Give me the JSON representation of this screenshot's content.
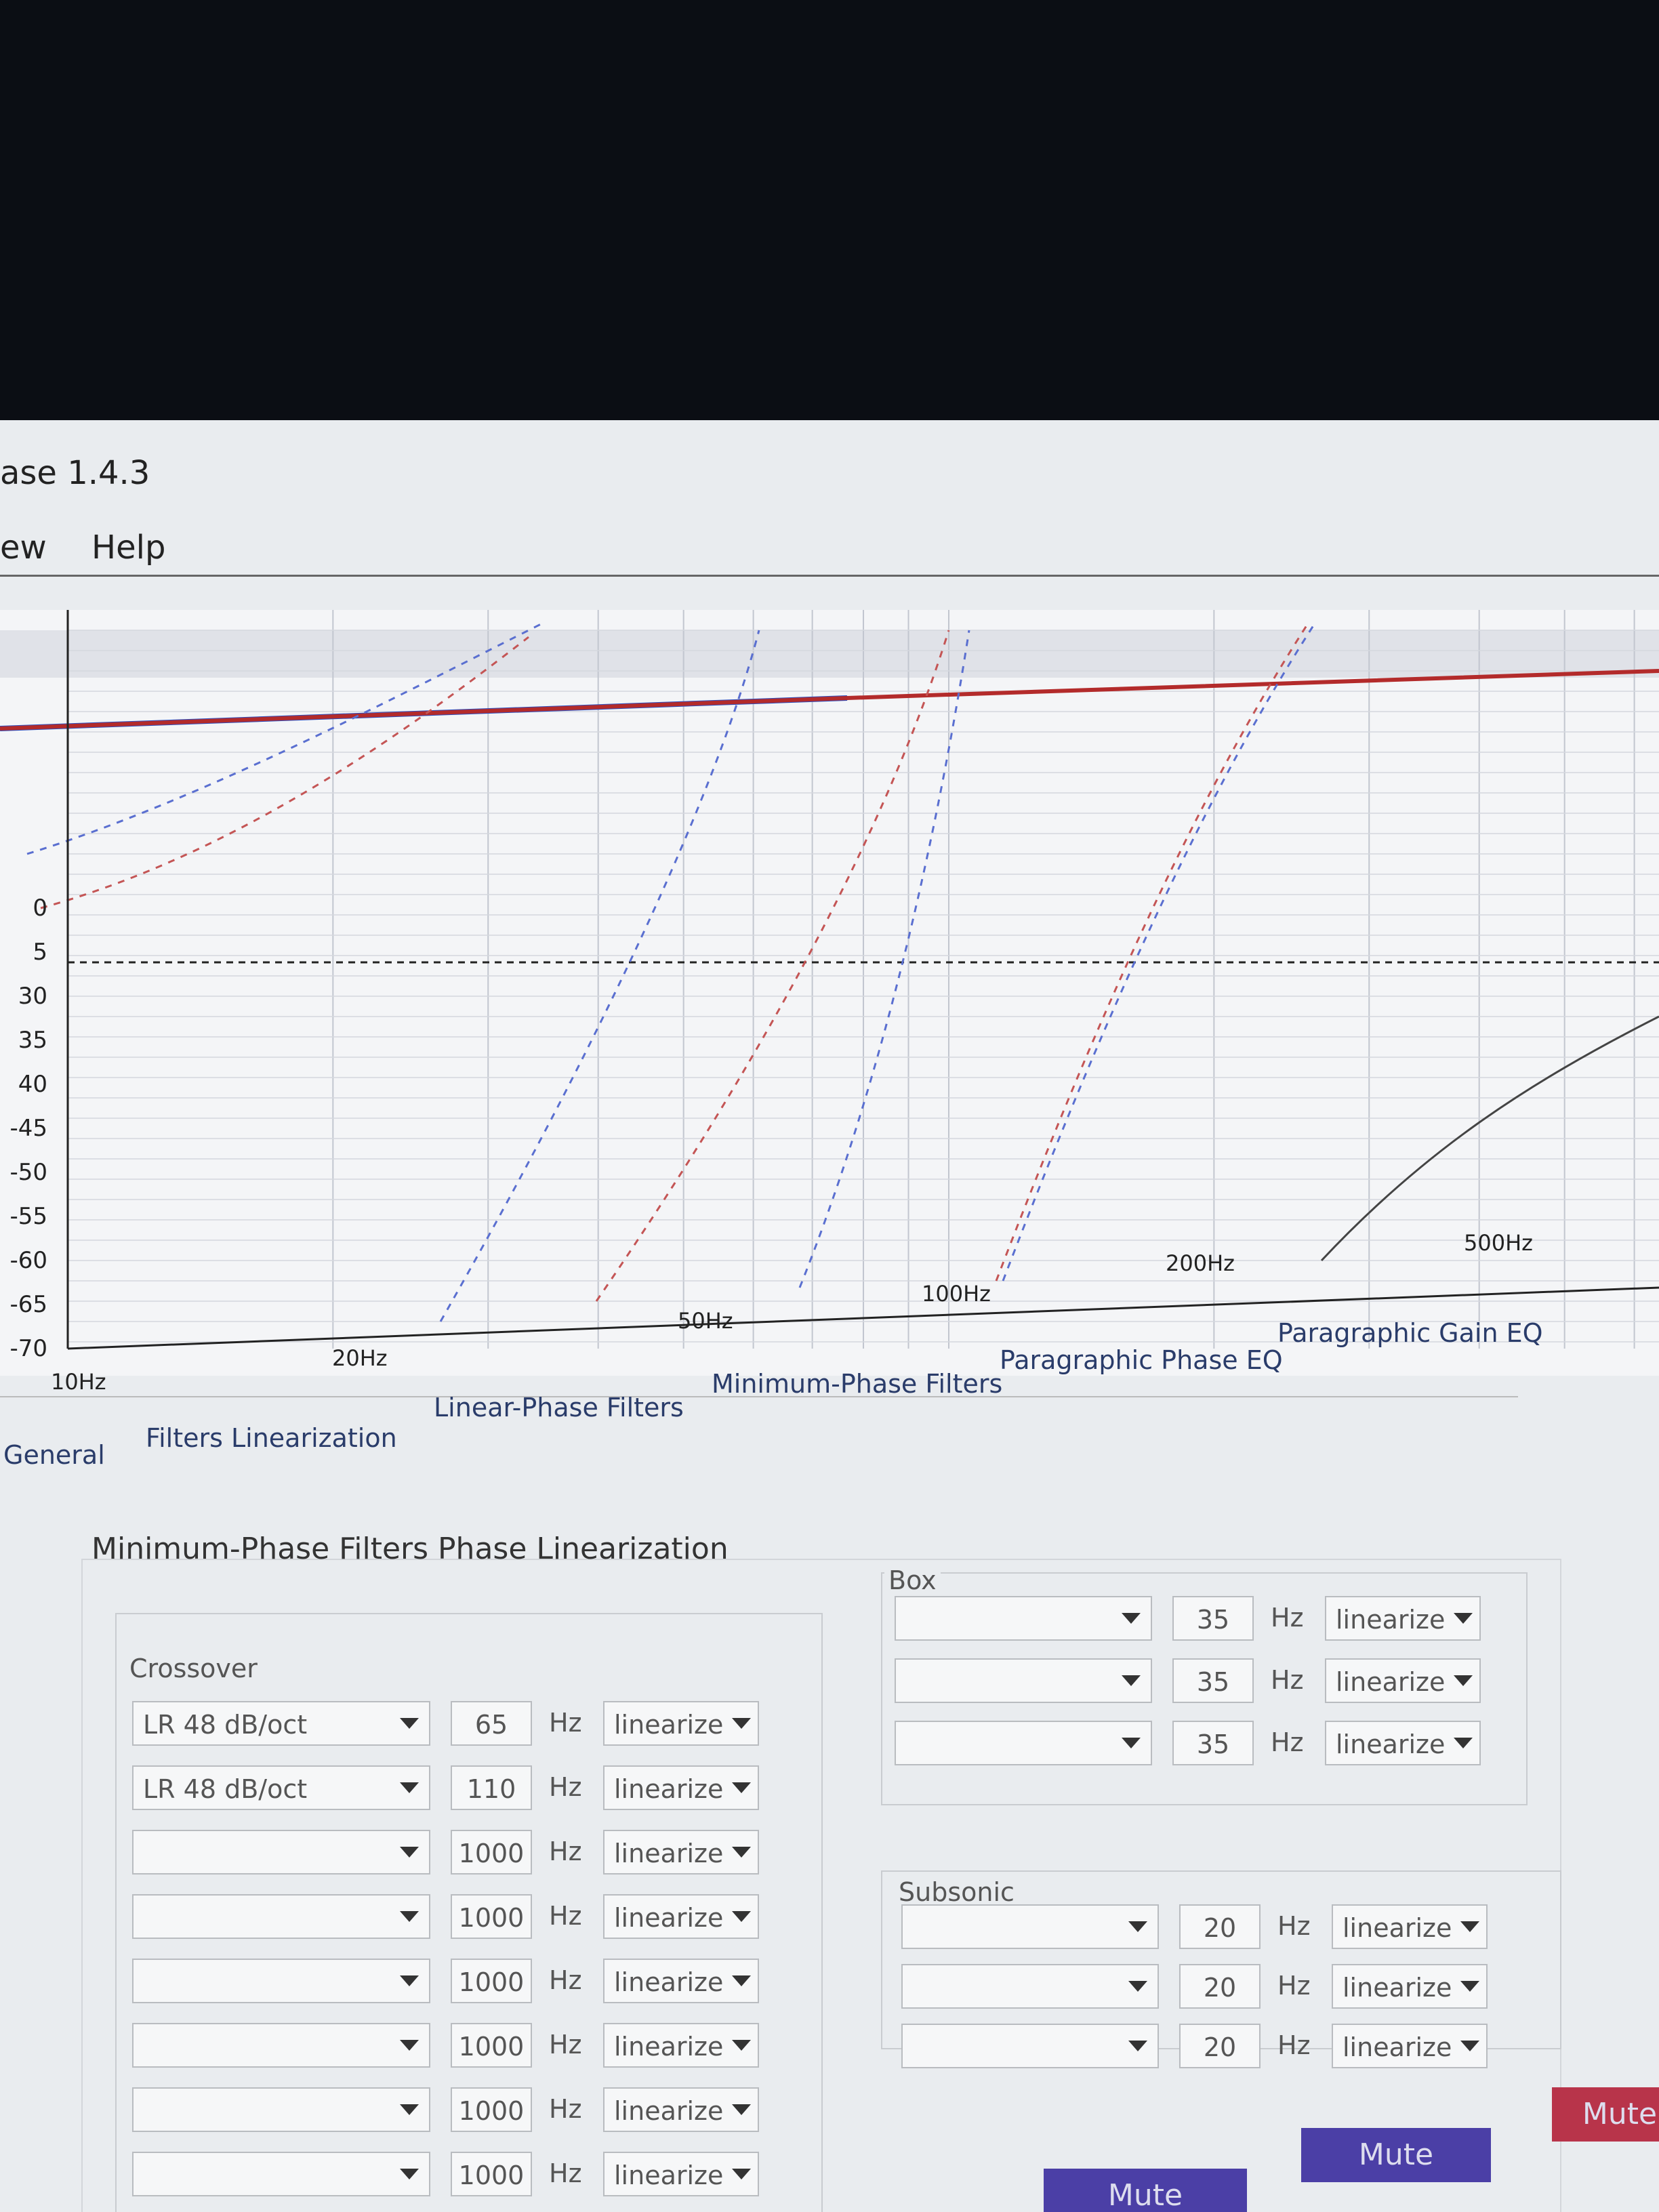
{
  "window": {
    "title": "ase 1.4.3",
    "menu": [
      "ew",
      "Help"
    ]
  },
  "plot": {
    "y_labels": [
      "0",
      "5",
      "30",
      "35",
      "40",
      "-45",
      "-50",
      "-55",
      "-60",
      "-65",
      "-70"
    ],
    "x_labels": [
      "10Hz",
      "20Hz",
      "50Hz",
      "100Hz",
      "200Hz",
      "500Hz"
    ]
  },
  "tabs": [
    "General",
    "Filters Linearization",
    "Linear-Phase Filters",
    "Minimum-Phase Filters",
    "Paragraphic Phase EQ",
    "Paragraphic Gain EQ"
  ],
  "panel": {
    "title": "Minimum-Phase Filters Phase Linearization",
    "crossover": {
      "label": "Crossover",
      "rows": [
        {
          "type": "LR 48 dB/oct",
          "freq": 65,
          "unit": "Hz",
          "mode": "linearize"
        },
        {
          "type": "LR 48 dB/oct",
          "freq": 110,
          "unit": "Hz",
          "mode": "linearize"
        },
        {
          "freq": 1000,
          "unit": "Hz",
          "mode": "linearize"
        },
        {
          "freq": 1000,
          "unit": "Hz",
          "mode": "linearize"
        },
        {
          "freq": 1000,
          "unit": "Hz",
          "mode": "linearize"
        },
        {
          "freq": 1000,
          "unit": "Hz",
          "mode": "linearize"
        },
        {
          "freq": 1000,
          "unit": "Hz",
          "mode": "linearize"
        },
        {
          "freq": 1000,
          "unit": "Hz",
          "mode": "linearize"
        }
      ]
    },
    "box": {
      "label": "Box",
      "rows": [
        {
          "freq": 35,
          "unit": "Hz",
          "mode": "linearize"
        },
        {
          "freq": 35,
          "unit": "Hz",
          "mode": "linearize"
        },
        {
          "freq": 35,
          "unit": "Hz",
          "mode": "linearize"
        }
      ]
    },
    "subsonic": {
      "label": "Subsonic",
      "rows": [
        {
          "freq": 20,
          "unit": "Hz",
          "mode": "linearize"
        },
        {
          "freq": 20,
          "unit": "Hz",
          "mode": "linearize"
        },
        {
          "freq": 20,
          "unit": "Hz",
          "mode": "linearize"
        }
      ]
    }
  },
  "buttons": [
    "Mute",
    "Mute",
    "Mute"
  ]
}
